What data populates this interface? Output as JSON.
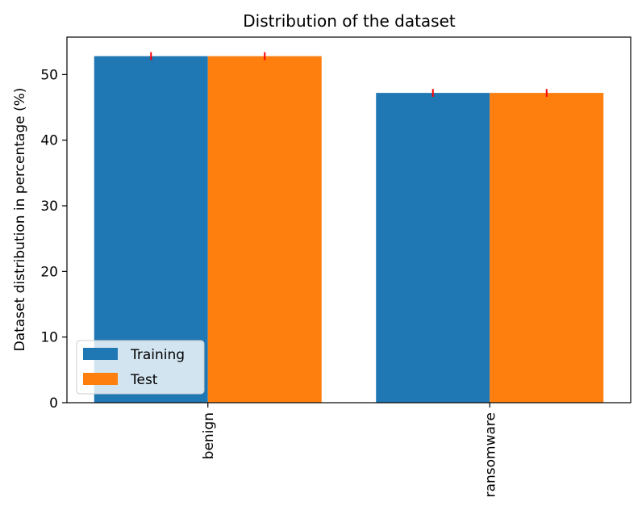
{
  "chart_data": {
    "type": "bar",
    "title": "Distribution of the dataset",
    "xlabel": "",
    "ylabel": "Dataset distribution in percentage (%)",
    "categories": [
      "benign",
      "ransomware"
    ],
    "series": [
      {
        "name": "Training",
        "values": [
          52.8,
          47.2
        ],
        "error": [
          0.6,
          0.6
        ],
        "color": "#1f77b4"
      },
      {
        "name": "Test",
        "values": [
          52.8,
          47.2
        ],
        "error": [
          0.6,
          0.6
        ],
        "color": "#ff7f0e"
      }
    ],
    "error_color": "#ff0000",
    "ylim": [
      0,
      55.7
    ],
    "yticks": [
      0,
      10,
      20,
      30,
      40,
      50
    ],
    "xtick_rotation": "vertical",
    "grid": false,
    "legend_position": "lower-left"
  }
}
